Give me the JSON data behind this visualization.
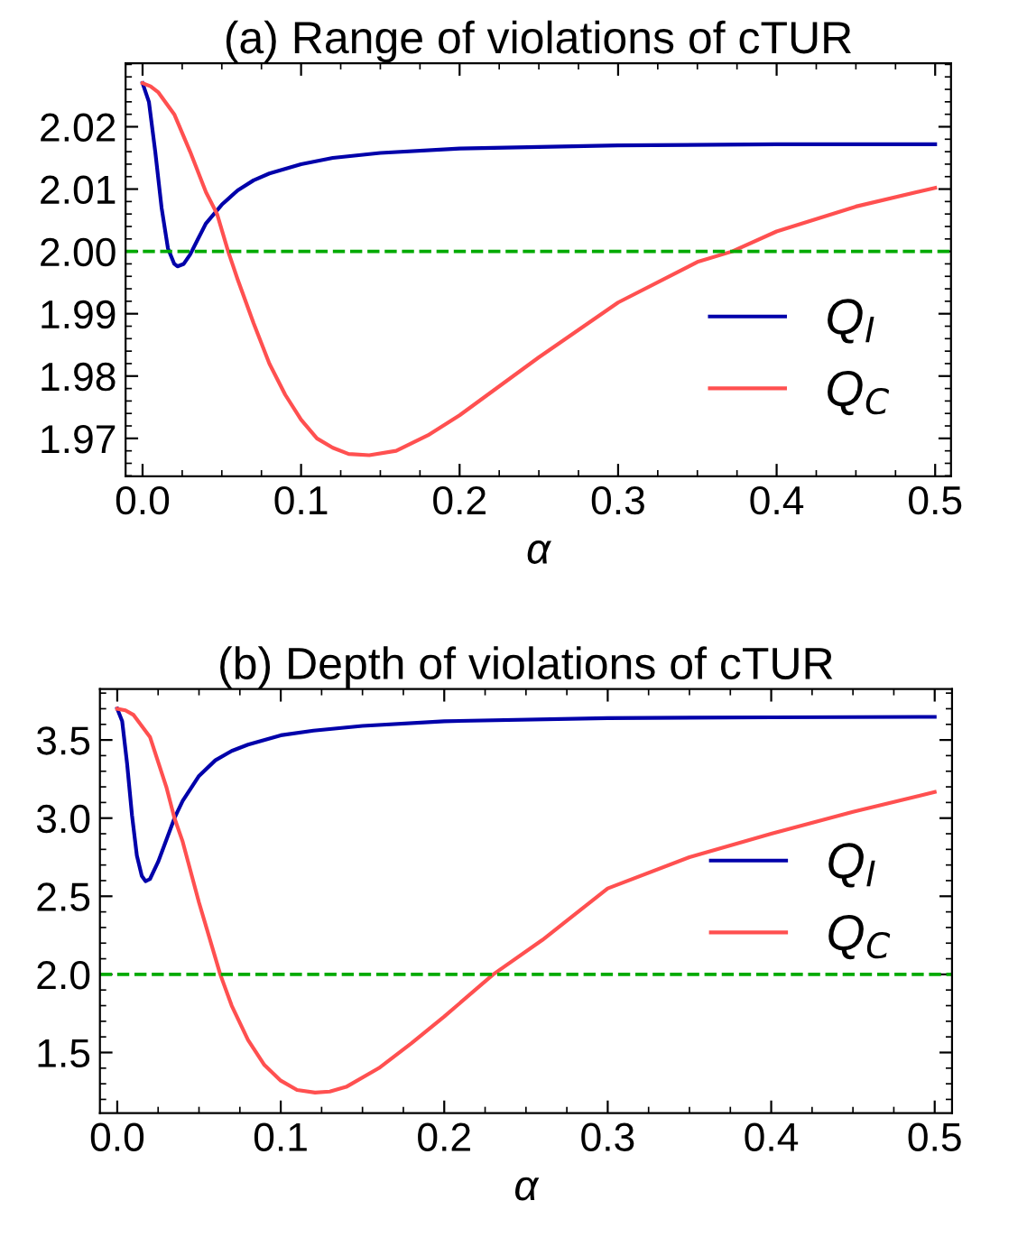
{
  "chart_data": [
    {
      "type": "line",
      "title": "(a) Range of violations of cTUR",
      "xlabel": "α",
      "xlim": [
        -0.0107,
        0.51
      ],
      "xticks": [
        {
          "value": 0,
          "label": "0.0"
        },
        0.1,
        0.2,
        0.3,
        0.4,
        0.5
      ],
      "ylim": [
        1.9639,
        2.0302
      ],
      "yticks": [
        {
          "value": 1.97,
          "label": "1.97"
        },
        {
          "value": 1.98,
          "label": "1.98"
        },
        {
          "value": 1.99,
          "label": "1.99"
        },
        {
          "value": 2.0,
          "label": "2.00"
        },
        {
          "value": 2.01,
          "label": "2.01"
        },
        {
          "value": 2.02,
          "label": "2.02"
        }
      ],
      "legend": "lower right",
      "grid": false,
      "line_style": "solid",
      "marker": "none",
      "ref_lines": [
        {
          "axis": "y",
          "value": 2.0,
          "color": "#00aa00",
          "line_style": "dashed"
        }
      ],
      "series": [
        {
          "name": "Q$_{I}$",
          "color": "#0000aa",
          "x": [
            0,
            0.004,
            0.008,
            0.012,
            0.016,
            0.02,
            0.022,
            0.026,
            0.03,
            0.035,
            0.04,
            0.05,
            0.06,
            0.07,
            0.08,
            0.1,
            0.12,
            0.15,
            0.2,
            0.3,
            0.4,
            0.5
          ],
          "values": [
            2.027,
            2.024,
            2.016,
            2.007,
            2.0005,
            1.998,
            1.9976,
            1.998,
            1.9995,
            2.002,
            2.0045,
            2.0075,
            2.0098,
            2.0114,
            2.0125,
            2.014,
            2.015,
            2.0158,
            2.0165,
            2.017,
            2.0172,
            2.0172
          ]
        },
        {
          "name": "Q$_{C}$",
          "color": "#ff5050",
          "x": [
            0,
            0.005,
            0.01,
            0.02,
            0.03,
            0.04,
            0.047,
            0.054,
            0.06,
            0.07,
            0.08,
            0.09,
            0.1,
            0.11,
            0.12,
            0.13,
            0.143,
            0.16,
            0.18,
            0.2,
            0.25,
            0.3,
            0.35,
            0.372,
            0.4,
            0.45,
            0.5
          ],
          "values": [
            2.027,
            2.0265,
            2.0255,
            2.022,
            2.016,
            2.0095,
            2.006,
            2.0,
            1.9955,
            1.9885,
            1.982,
            1.977,
            1.973,
            1.97,
            1.9685,
            1.9675,
            1.9673,
            1.968,
            1.9705,
            1.9737,
            1.983,
            1.9918,
            1.9983,
            2.0,
            2.0032,
            2.0072,
            2.0102
          ]
        }
      ]
    },
    {
      "type": "line",
      "title": "(b) Depth of violations of cTUR",
      "xlabel": "α",
      "xlim": [
        -0.0106,
        0.5106
      ],
      "xticks": [
        {
          "value": 0,
          "label": "0.0"
        },
        0.1,
        0.2,
        0.3,
        0.4,
        0.5
      ],
      "ylim": [
        1.1125,
        3.826
      ],
      "yticks": [
        1.5,
        {
          "value": 2.0,
          "label": "2.0"
        },
        2.5,
        {
          "value": 3.0,
          "label": "3.0"
        },
        3.5
      ],
      "legend": "center right",
      "grid": false,
      "line_style": "solid",
      "marker": "none",
      "ref_lines": [
        {
          "axis": "y",
          "value": 2.0,
          "color": "#00aa00",
          "line_style": "dashed"
        }
      ],
      "series": [
        {
          "name": "Q$_{I}$",
          "color": "#0000aa",
          "x": [
            0,
            0.003,
            0.006,
            0.009,
            0.012,
            0.015,
            0.0173,
            0.02,
            0.025,
            0.03,
            0.035,
            0.04,
            0.05,
            0.06,
            0.07,
            0.08,
            0.1,
            0.12,
            0.15,
            0.2,
            0.3,
            0.4,
            0.5
          ],
          "values": [
            3.7,
            3.62,
            3.35,
            3.02,
            2.76,
            2.63,
            2.596,
            2.61,
            2.72,
            2.86,
            3.0,
            3.11,
            3.27,
            3.37,
            3.43,
            3.47,
            3.53,
            3.56,
            3.59,
            3.62,
            3.64,
            3.645,
            3.648
          ]
        },
        {
          "name": "Q$_{C}$",
          "color": "#ff5050",
          "x": [
            0,
            0.005,
            0.01,
            0.02,
            0.03,
            0.035,
            0.04,
            0.05,
            0.063,
            0.07,
            0.08,
            0.09,
            0.1,
            0.11,
            0.121,
            0.13,
            0.14,
            0.16,
            0.18,
            0.2,
            0.23,
            0.26,
            0.3,
            0.35,
            0.4,
            0.45,
            0.5
          ],
          "values": [
            3.7,
            3.69,
            3.66,
            3.52,
            3.2,
            3.0,
            2.85,
            2.46,
            2.0,
            1.8,
            1.58,
            1.42,
            1.32,
            1.26,
            1.244,
            1.25,
            1.28,
            1.4,
            1.56,
            1.73,
            2.0,
            2.22,
            2.55,
            2.75,
            2.9,
            3.04,
            3.167
          ]
        }
      ]
    }
  ]
}
